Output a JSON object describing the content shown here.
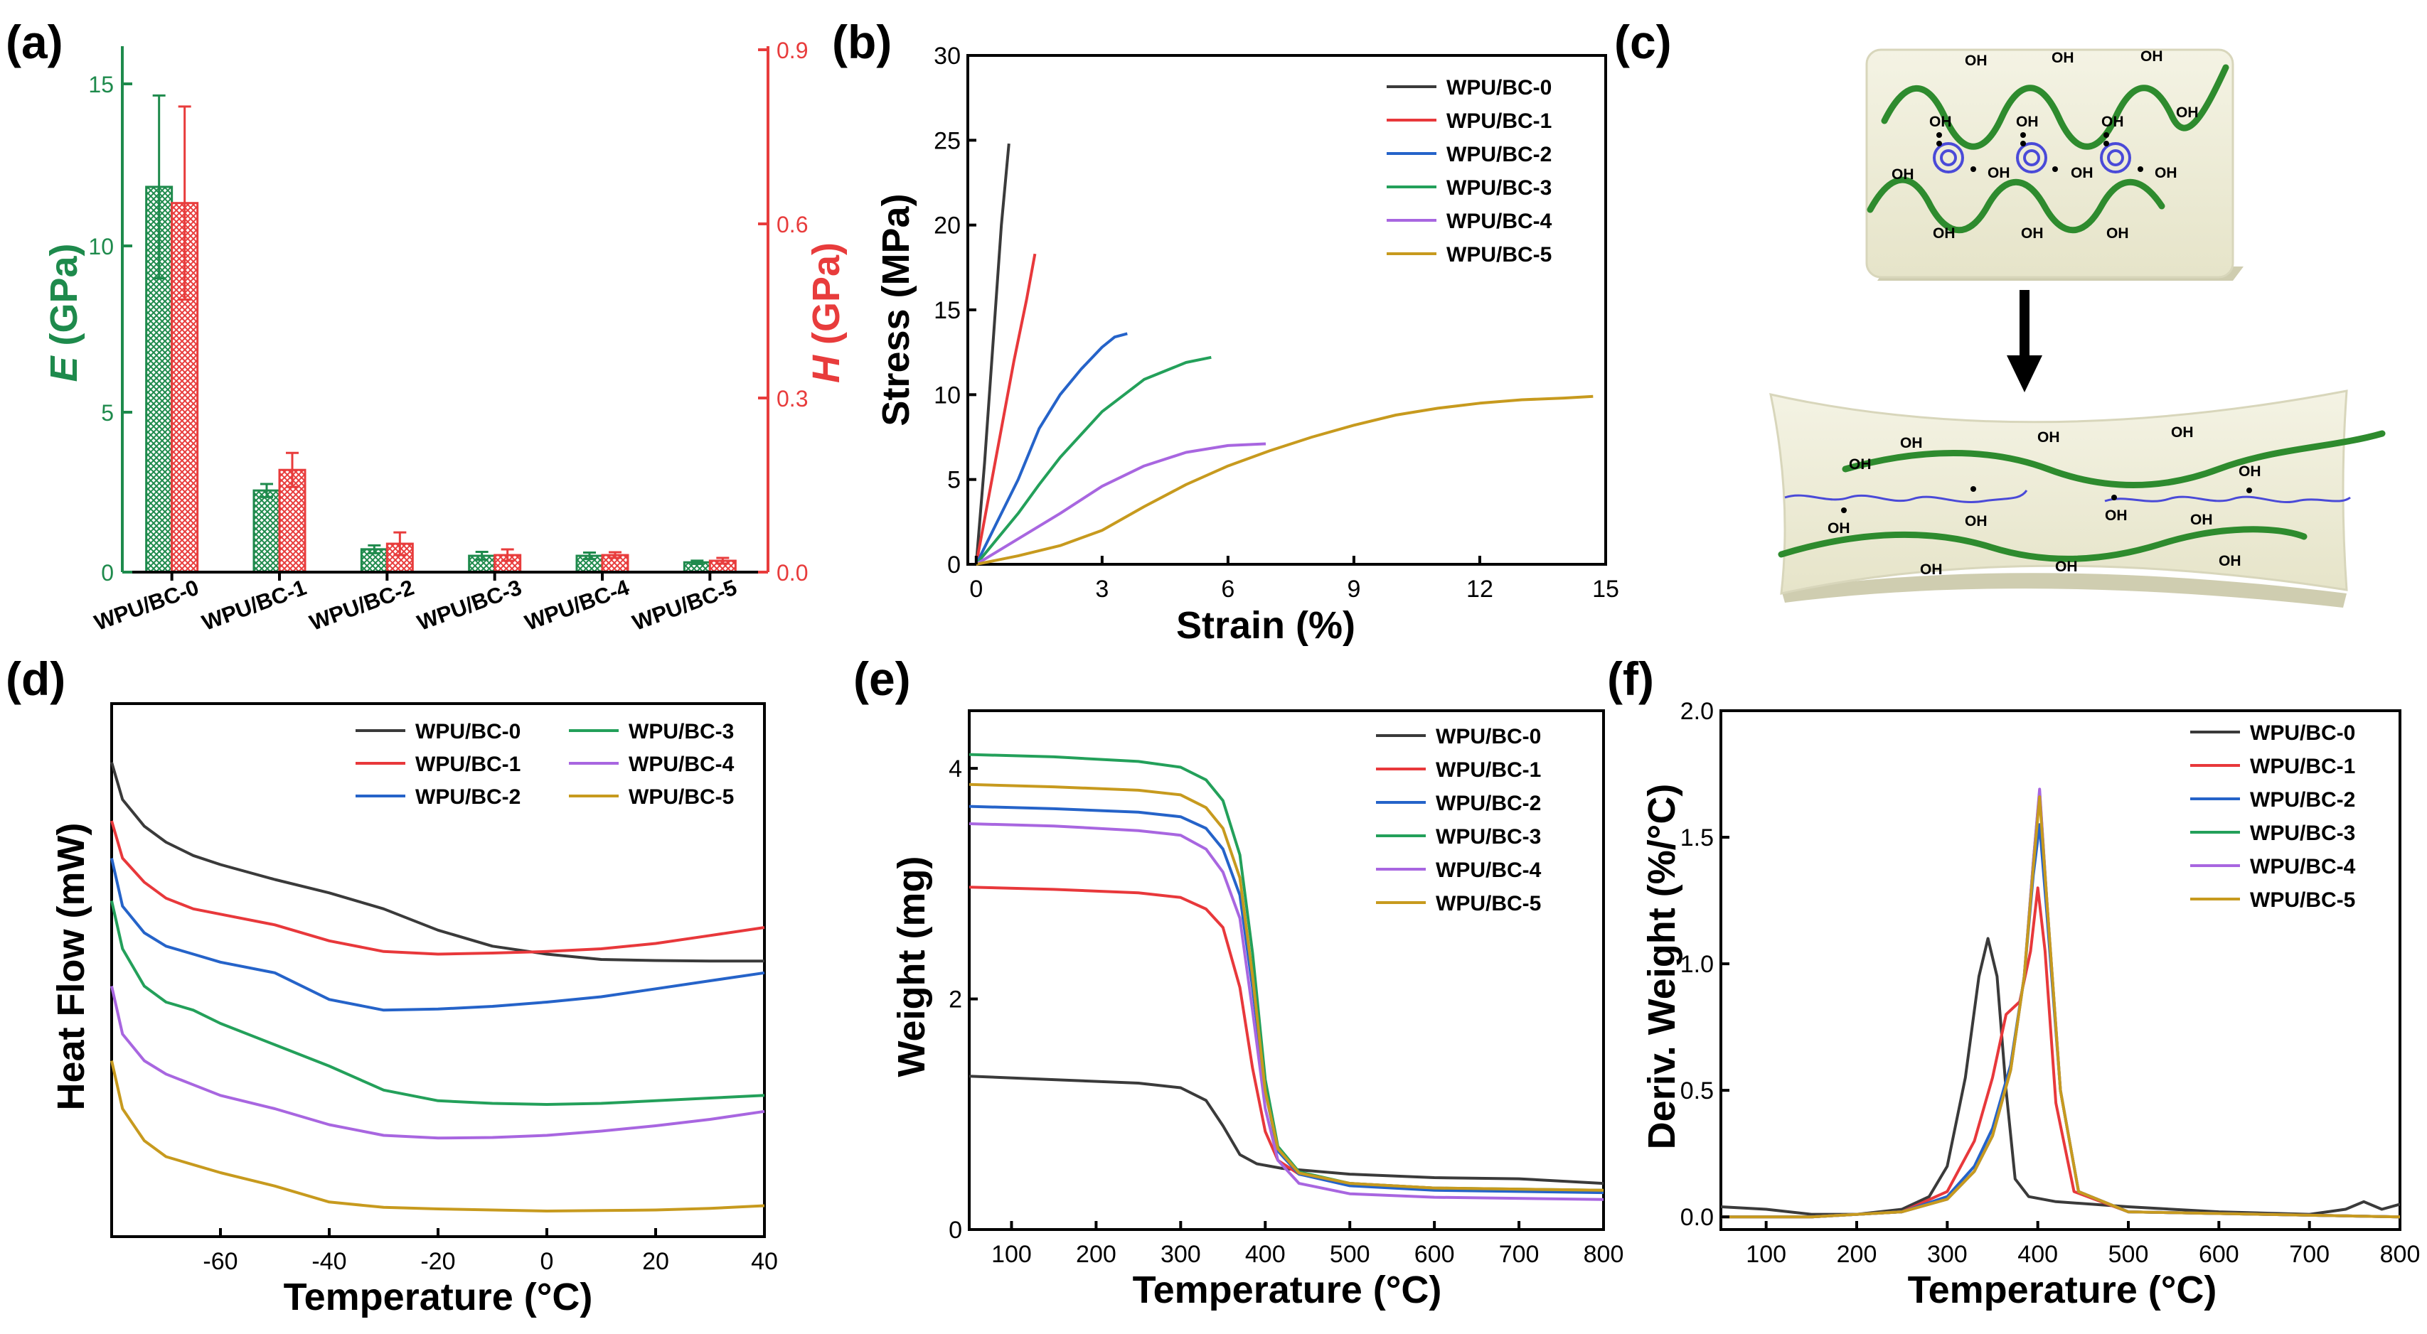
{
  "colors": {
    "wpu0": "#3a3a3a",
    "wpu1": "#e8383b",
    "wpu2": "#2563c9",
    "wpu3": "#23a05a",
    "wpu4": "#a866e0",
    "wpu5": "#c79a1e",
    "modulus": "#1e8a4c",
    "hardness": "#e83c3c",
    "chain": "#2e8b2e",
    "chain_blue": "#4a4ad8",
    "panel_fill": "#efeed9"
  },
  "panel_a": {
    "letter": "(a)",
    "ylabel_left_var": "E",
    "ylabel_left_unit": " (GPa)",
    "ylabel_right_var": "H",
    "ylabel_right_unit": " (GPa)",
    "left_ticks": [
      "0",
      "5",
      "10",
      "15"
    ],
    "right_ticks": [
      "0.0",
      "0.3",
      "0.6",
      "0.9"
    ]
  },
  "panel_b": {
    "letter": "(b)",
    "xlabel": "Strain (%)",
    "ylabel": "Stress (MPa)",
    "xticks": [
      "0",
      "3",
      "6",
      "9",
      "12",
      "15"
    ],
    "yticks": [
      "0",
      "5",
      "10",
      "15",
      "20",
      "25",
      "30"
    ]
  },
  "panel_c": {
    "letter": "(c)",
    "oh": "OH"
  },
  "panel_d": {
    "letter": "(d)",
    "xlabel": "Temperature (°C)",
    "ylabel": "Heat Flow (mW)",
    "xticks": [
      "-60",
      "-40",
      "-20",
      "0",
      "20",
      "40"
    ]
  },
  "panel_e": {
    "letter": "(e)",
    "xlabel": "Temperature (°C)",
    "ylabel": "Weight (mg)",
    "xticks": [
      "100",
      "200",
      "300",
      "400",
      "500",
      "600",
      "700",
      "800"
    ],
    "yticks": [
      "0",
      "2",
      "4"
    ]
  },
  "panel_f": {
    "letter": "(f)",
    "xlabel": "Temperature (°C)",
    "ylabel": "Deriv. Weight (%/°C)",
    "xticks": [
      "100",
      "200",
      "300",
      "400",
      "500",
      "600",
      "700",
      "800"
    ],
    "yticks": [
      "0.0",
      "0.5",
      "1.0",
      "1.5",
      "2.0"
    ]
  },
  "chart_data": [
    {
      "id": "a",
      "type": "bar",
      "title": "",
      "categories": [
        "WPU/BC-0",
        "WPU/BC-1",
        "WPU/BC-2",
        "WPU/BC-3",
        "WPU/BC-4",
        "WPU/BC-5"
      ],
      "series": [
        {
          "name": "E (GPa)",
          "axis": "left",
          "values": [
            11.8,
            2.5,
            0.7,
            0.5,
            0.5,
            0.3
          ],
          "errors": [
            2.8,
            0.2,
            0.12,
            0.12,
            0.1,
            0.05
          ]
        },
        {
          "name": "H (GPa)",
          "axis": "right",
          "values": [
            0.65,
            0.18,
            0.05,
            0.03,
            0.03,
            0.02
          ],
          "errors": [
            0.17,
            0.03,
            0.02,
            0.01,
            0.005,
            0.005
          ]
        }
      ],
      "ylim_left": [
        0,
        16
      ],
      "ylim_right": [
        0,
        0.92
      ]
    },
    {
      "id": "b",
      "type": "line",
      "xlabel": "Strain (%)",
      "ylabel": "Stress (MPa)",
      "xlim": [
        -0.2,
        15
      ],
      "ylim": [
        0,
        30
      ],
      "legend": "top-right",
      "series": [
        {
          "name": "WPU/BC-0",
          "x": [
            0,
            0.2,
            0.4,
            0.6,
            0.78
          ],
          "y": [
            0,
            6,
            13,
            20,
            24.8
          ]
        },
        {
          "name": "WPU/BC-1",
          "x": [
            0,
            0.3,
            0.6,
            0.9,
            1.2,
            1.4
          ],
          "y": [
            0,
            4,
            8,
            12,
            15.6,
            18.3
          ]
        },
        {
          "name": "WPU/BC-2",
          "x": [
            0,
            0.5,
            1,
            1.5,
            2,
            2.5,
            3,
            3.3,
            3.6
          ],
          "y": [
            0,
            2.5,
            5,
            8,
            10,
            11.5,
            12.8,
            13.4,
            13.6
          ]
        },
        {
          "name": "WPU/BC-3",
          "x": [
            0,
            0.5,
            1,
            1.5,
            2,
            3,
            4,
            5,
            5.6
          ],
          "y": [
            0,
            1.5,
            3,
            4.7,
            6.3,
            9,
            10.9,
            11.9,
            12.2
          ]
        },
        {
          "name": "WPU/BC-4",
          "x": [
            0,
            1,
            2,
            3,
            4,
            5,
            6,
            6.9
          ],
          "y": [
            0,
            1.5,
            3,
            4.6,
            5.8,
            6.6,
            7,
            7.1
          ]
        },
        {
          "name": "WPU/BC-5",
          "x": [
            0,
            1,
            2,
            3,
            4,
            5,
            6,
            7,
            8,
            9,
            10,
            11,
            12,
            13,
            14,
            14.7
          ],
          "y": [
            0,
            0.5,
            1.1,
            2,
            3.4,
            4.7,
            5.8,
            6.7,
            7.5,
            8.2,
            8.8,
            9.2,
            9.5,
            9.7,
            9.8,
            9.9
          ]
        }
      ]
    },
    {
      "id": "d",
      "type": "line",
      "xlabel": "Temperature (°C)",
      "ylabel": "Heat Flow (mW)",
      "xlim": [
        -80,
        40
      ],
      "ylim": [
        0,
        100
      ],
      "legend": "top-right",
      "series": [
        {
          "name": "WPU/BC-0",
          "x": [
            -80,
            -78,
            -74,
            -70,
            -65,
            -60,
            -50,
            -40,
            -30,
            -20,
            -10,
            0,
            10,
            20,
            30,
            40
          ],
          "y": [
            89,
            82,
            77,
            74,
            71.5,
            69.8,
            67,
            64.5,
            61.5,
            57.5,
            54.5,
            53,
            52,
            51.8,
            51.7,
            51.7
          ]
        },
        {
          "name": "WPU/BC-1",
          "x": [
            -80,
            -78,
            -74,
            -70,
            -65,
            -60,
            -50,
            -40,
            -30,
            -20,
            -10,
            0,
            10,
            20,
            30,
            40
          ],
          "y": [
            78,
            71,
            66.5,
            63.5,
            61.5,
            60.5,
            58.5,
            55.5,
            53.5,
            53,
            53.2,
            53.5,
            54,
            55,
            56.5,
            58
          ]
        },
        {
          "name": "WPU/BC-2",
          "x": [
            -80,
            -78,
            -74,
            -70,
            -65,
            -60,
            -50,
            -40,
            -30,
            -20,
            -10,
            0,
            10,
            20,
            30,
            40
          ],
          "y": [
            71,
            62,
            57,
            54.5,
            53,
            51.5,
            49.5,
            44.5,
            42.5,
            42.7,
            43.2,
            44,
            45,
            46.5,
            48,
            49.5
          ]
        },
        {
          "name": "WPU/BC-3",
          "x": [
            -80,
            -78,
            -74,
            -70,
            -65,
            -60,
            -50,
            -40,
            -30,
            -20,
            -10,
            0,
            10,
            20,
            30,
            40
          ],
          "y": [
            63,
            54,
            47,
            44,
            42.5,
            40,
            36,
            32,
            27.5,
            25.5,
            25,
            24.8,
            25,
            25.5,
            26,
            26.5
          ]
        },
        {
          "name": "WPU/BC-4",
          "x": [
            -80,
            -78,
            -74,
            -70,
            -65,
            -60,
            -50,
            -40,
            -30,
            -20,
            -10,
            0,
            10,
            20,
            30,
            40
          ],
          "y": [
            47,
            38,
            33,
            30.5,
            28.5,
            26.5,
            24,
            21,
            19,
            18.5,
            18.6,
            19,
            19.8,
            20.8,
            22,
            23.5
          ]
        },
        {
          "name": "WPU/BC-5",
          "x": [
            -80,
            -78,
            -74,
            -70,
            -65,
            -60,
            -50,
            -40,
            -30,
            -20,
            -10,
            0,
            10,
            20,
            30,
            40
          ],
          "y": [
            33,
            24,
            18,
            15,
            13.5,
            12,
            9.5,
            6.5,
            5.5,
            5.2,
            5,
            4.8,
            4.9,
            5,
            5.3,
            5.8
          ]
        }
      ],
      "legend_layout": "two-column"
    },
    {
      "id": "e",
      "type": "line",
      "xlabel": "Temperature (°C)",
      "ylabel": "Weight (mg)",
      "xlim": [
        50,
        800
      ],
      "ylim": [
        0,
        4.5
      ],
      "legend": "top-right",
      "series": [
        {
          "name": "WPU/BC-0",
          "x": [
            50,
            150,
            250,
            300,
            330,
            350,
            370,
            390,
            420,
            500,
            600,
            700,
            800
          ],
          "y": [
            1.33,
            1.3,
            1.27,
            1.23,
            1.12,
            0.9,
            0.65,
            0.57,
            0.53,
            0.48,
            0.45,
            0.44,
            0.4
          ]
        },
        {
          "name": "WPU/BC-1",
          "x": [
            50,
            150,
            250,
            300,
            330,
            350,
            370,
            385,
            400,
            415,
            440,
            500,
            600,
            800
          ],
          "y": [
            2.97,
            2.95,
            2.92,
            2.88,
            2.78,
            2.62,
            2.1,
            1.4,
            0.85,
            0.6,
            0.48,
            0.4,
            0.36,
            0.33
          ]
        },
        {
          "name": "WPU/BC-2",
          "x": [
            50,
            150,
            250,
            300,
            330,
            350,
            370,
            385,
            400,
            415,
            440,
            500,
            600,
            800
          ],
          "y": [
            3.67,
            3.65,
            3.62,
            3.58,
            3.48,
            3.3,
            2.9,
            2.1,
            1.2,
            0.68,
            0.48,
            0.38,
            0.34,
            0.32
          ]
        },
        {
          "name": "WPU/BC-3",
          "x": [
            50,
            150,
            250,
            300,
            330,
            350,
            370,
            385,
            400,
            415,
            440,
            500,
            600,
            800
          ],
          "y": [
            4.12,
            4.1,
            4.06,
            4.01,
            3.9,
            3.72,
            3.25,
            2.4,
            1.3,
            0.72,
            0.5,
            0.4,
            0.36,
            0.34
          ]
        },
        {
          "name": "WPU/BC-4",
          "x": [
            50,
            150,
            250,
            300,
            330,
            350,
            370,
            385,
            400,
            415,
            440,
            500,
            600,
            800
          ],
          "y": [
            3.52,
            3.5,
            3.46,
            3.42,
            3.3,
            3.1,
            2.7,
            1.9,
            1.05,
            0.6,
            0.4,
            0.31,
            0.28,
            0.26
          ]
        },
        {
          "name": "WPU/BC-5",
          "x": [
            50,
            150,
            250,
            300,
            330,
            350,
            370,
            385,
            400,
            415,
            440,
            500,
            600,
            800
          ],
          "y": [
            3.86,
            3.84,
            3.81,
            3.77,
            3.66,
            3.48,
            3.05,
            2.2,
            1.2,
            0.7,
            0.49,
            0.4,
            0.36,
            0.34
          ]
        }
      ]
    },
    {
      "id": "f",
      "type": "line",
      "xlabel": "Temperature (°C)",
      "ylabel": "Deriv. Weight (%/°C)",
      "xlim": [
        50,
        800
      ],
      "ylim": [
        -0.05,
        2.0
      ],
      "legend": "top-right",
      "series": [
        {
          "name": "WPU/BC-0",
          "x": [
            50,
            100,
            150,
            200,
            250,
            280,
            300,
            320,
            335,
            345,
            355,
            365,
            375,
            390,
            420,
            500,
            600,
            700,
            740,
            760,
            780,
            800
          ],
          "y": [
            0.04,
            0.03,
            0.01,
            0.01,
            0.03,
            0.08,
            0.2,
            0.55,
            0.95,
            1.1,
            0.95,
            0.5,
            0.15,
            0.08,
            0.06,
            0.04,
            0.02,
            0.01,
            0.03,
            0.06,
            0.03,
            0.05
          ]
        },
        {
          "name": "WPU/BC-1",
          "x": [
            50,
            150,
            250,
            300,
            330,
            350,
            365,
            380,
            392,
            400,
            408,
            420,
            440,
            500,
            800
          ],
          "y": [
            0.0,
            0.0,
            0.02,
            0.1,
            0.3,
            0.55,
            0.8,
            0.85,
            1.05,
            1.3,
            1.05,
            0.45,
            0.1,
            0.02,
            0.0
          ]
        },
        {
          "name": "WPU/BC-2",
          "x": [
            50,
            150,
            250,
            300,
            330,
            350,
            370,
            385,
            395,
            402,
            410,
            425,
            445,
            500,
            800
          ],
          "y": [
            0.0,
            0.0,
            0.02,
            0.08,
            0.2,
            0.35,
            0.6,
            0.95,
            1.35,
            1.55,
            1.2,
            0.5,
            0.1,
            0.02,
            0.0
          ]
        },
        {
          "name": "WPU/BC-3",
          "x": [
            50,
            150,
            250,
            300,
            330,
            350,
            370,
            385,
            395,
            402,
            410,
            425,
            445,
            500,
            800
          ],
          "y": [
            0.0,
            0.0,
            0.02,
            0.07,
            0.18,
            0.32,
            0.58,
            0.95,
            1.4,
            1.68,
            1.25,
            0.5,
            0.1,
            0.02,
            0.0
          ]
        },
        {
          "name": "WPU/BC-4",
          "x": [
            50,
            150,
            250,
            300,
            330,
            350,
            370,
            385,
            395,
            402,
            410,
            425,
            445,
            500,
            800
          ],
          "y": [
            0.0,
            0.0,
            0.02,
            0.07,
            0.18,
            0.32,
            0.58,
            0.95,
            1.4,
            1.69,
            1.25,
            0.5,
            0.1,
            0.02,
            0.0
          ]
        },
        {
          "name": "WPU/BC-5",
          "x": [
            50,
            150,
            250,
            300,
            330,
            350,
            370,
            385,
            395,
            402,
            410,
            425,
            445,
            500,
            800
          ],
          "y": [
            0.0,
            0.0,
            0.02,
            0.07,
            0.18,
            0.32,
            0.58,
            0.95,
            1.38,
            1.66,
            1.25,
            0.5,
            0.1,
            0.02,
            0.0
          ]
        }
      ]
    }
  ]
}
